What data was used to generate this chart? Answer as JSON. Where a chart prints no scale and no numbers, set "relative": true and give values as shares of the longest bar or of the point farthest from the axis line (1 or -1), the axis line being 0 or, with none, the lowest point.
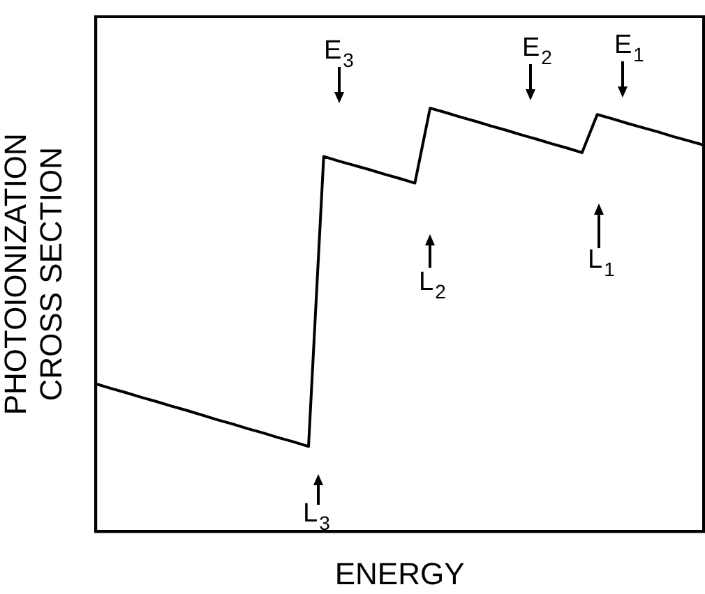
{
  "chart_data": {
    "type": "line",
    "relative": true,
    "xlabel": "ENERGY",
    "ylabel": "PHOTOIONIZATION CROSS SECTION",
    "color": "#000000",
    "marker": "none",
    "grid": false,
    "legend": false,
    "categories": [
      null,
      null,
      null,
      null,
      null,
      null,
      null,
      null,
      null,
      null,
      null,
      null,
      null,
      null,
      null,
      null,
      null,
      null,
      null,
      null,
      null,
      null,
      null,
      null,
      null,
      null,
      null,
      null,
      null,
      null,
      null,
      null,
      null,
      null,
      null,
      null,
      null,
      null,
      null,
      null,
      null
    ],
    "values": [
      0.349,
      0.338,
      0.328,
      0.317,
      0.307,
      0.296,
      0.286,
      0.275,
      0.264,
      0.254,
      0.243,
      0.233,
      0.222,
      0.212,
      0.201,
      0.886,
      0.875,
      0.865,
      0.855,
      0.844,
      0.834,
      0.823,
      1.0,
      0.99,
      0.979,
      0.969,
      0.958,
      0.948,
      0.937,
      0.927,
      0.916,
      0.906,
      0.895,
      0.985,
      0.975,
      0.964,
      0.954,
      0.944,
      0.933,
      0.923,
      0.913
    ],
    "annotations": [
      "E$_{3}$",
      "E$_{2}$",
      "E$_{1}$",
      "L$_{3}$",
      "L$_{2}$",
      "L$_{1}$"
    ]
  }
}
